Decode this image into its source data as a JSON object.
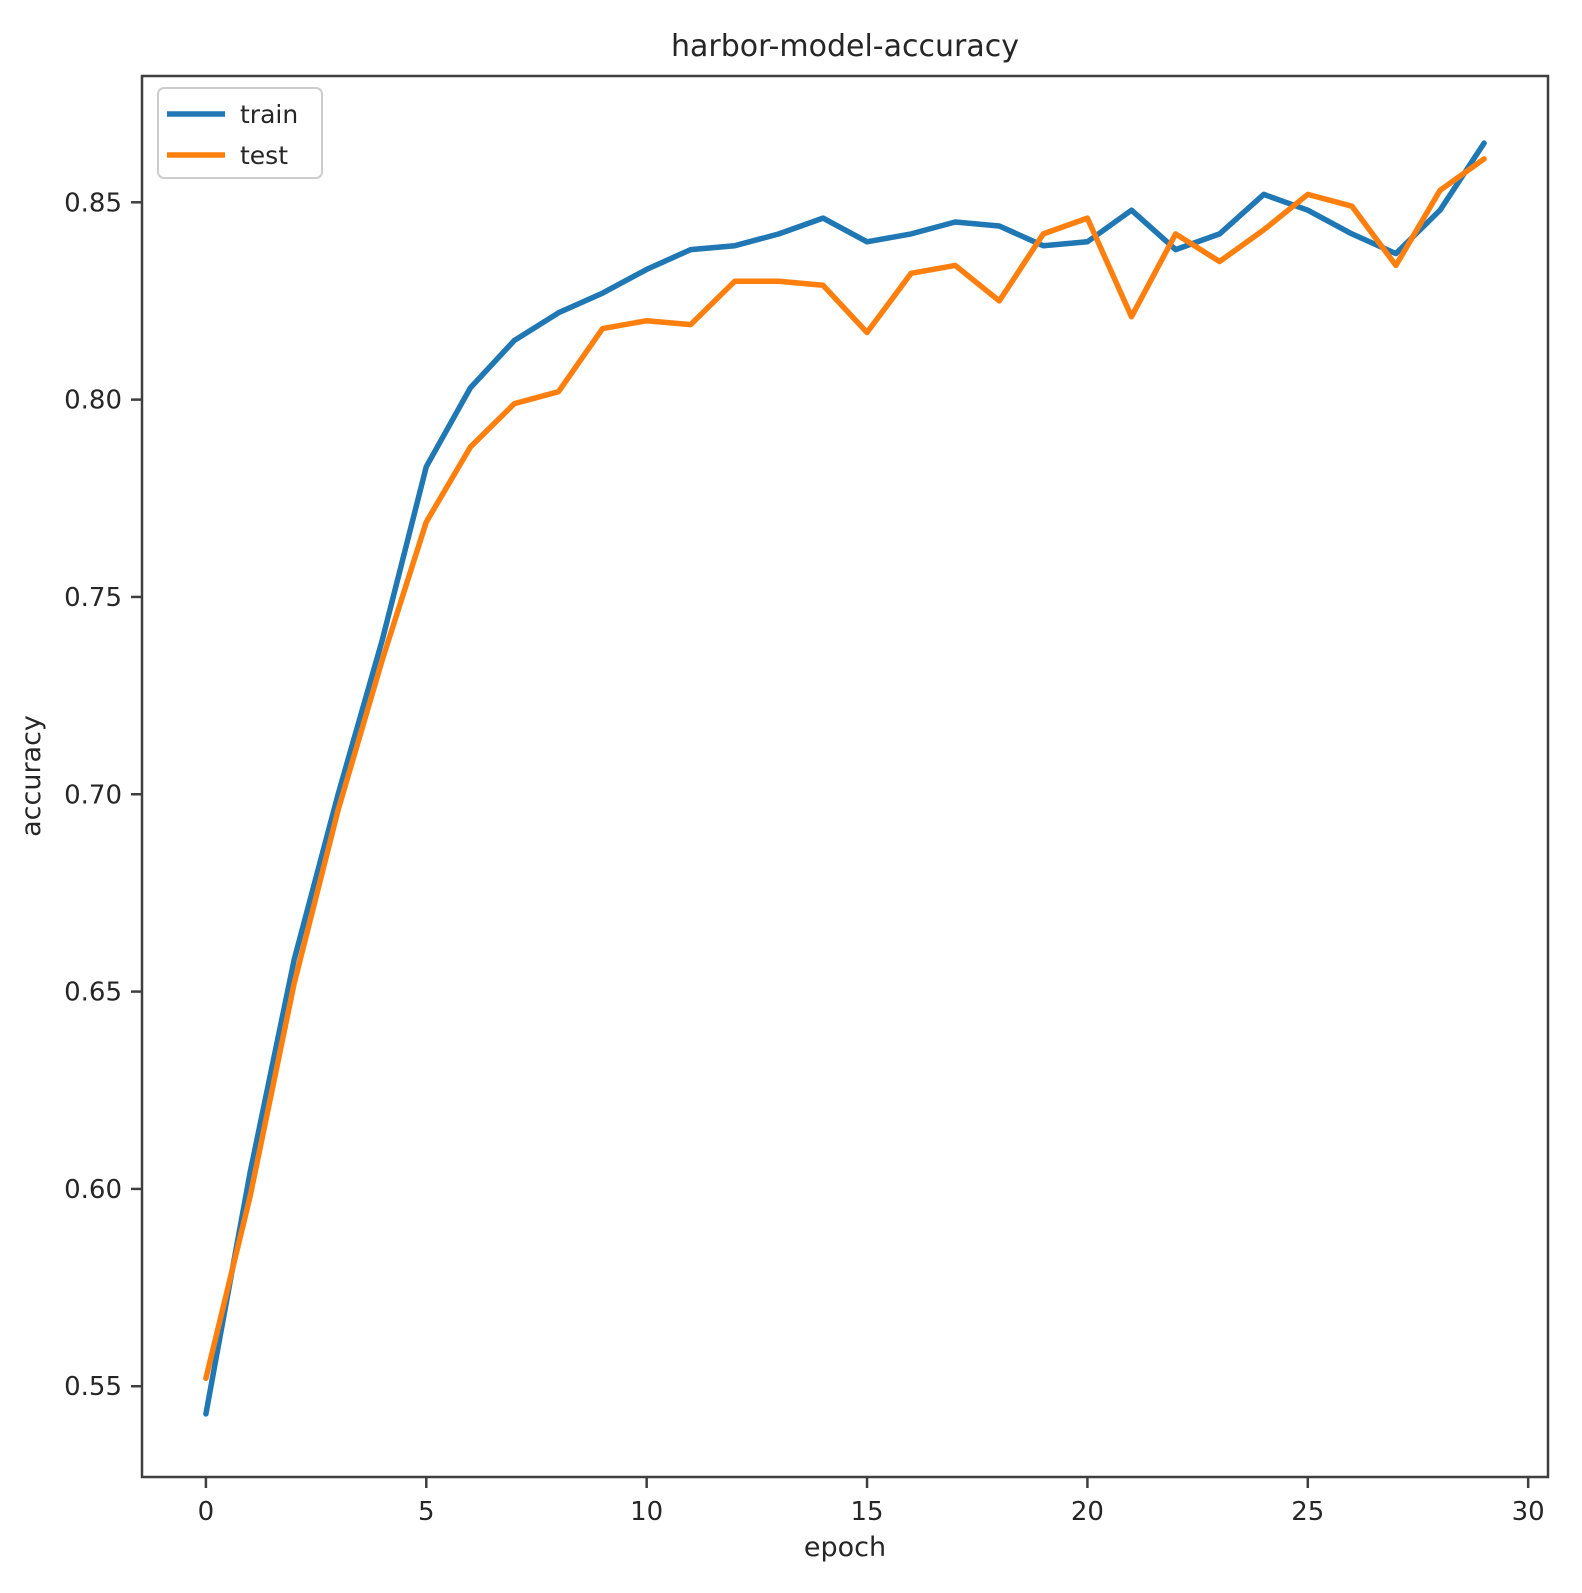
{
  "chart_data": {
    "type": "line",
    "title": "harbor-model-accuracy",
    "xlabel": "epoch",
    "ylabel": "accuracy",
    "x": [
      0,
      1,
      2,
      3,
      4,
      5,
      6,
      7,
      8,
      9,
      10,
      11,
      12,
      13,
      14,
      15,
      16,
      17,
      18,
      19,
      20,
      21,
      22,
      23,
      24,
      25,
      26,
      27,
      28,
      29
    ],
    "series": [
      {
        "name": "train",
        "color": "#1f77b4",
        "values": [
          0.543,
          0.604,
          0.658,
          0.7,
          0.739,
          0.783,
          0.803,
          0.815,
          0.822,
          0.827,
          0.833,
          0.838,
          0.839,
          0.842,
          0.846,
          0.84,
          0.842,
          0.845,
          0.844,
          0.839,
          0.84,
          0.848,
          0.838,
          0.842,
          0.852,
          0.848,
          0.842,
          0.837,
          0.848,
          0.865
        ]
      },
      {
        "name": "test",
        "color": "#ff7f0e",
        "values": [
          0.552,
          0.598,
          0.652,
          0.696,
          0.734,
          0.769,
          0.788,
          0.799,
          0.802,
          0.818,
          0.82,
          0.819,
          0.83,
          0.83,
          0.829,
          0.817,
          0.832,
          0.834,
          0.825,
          0.842,
          0.846,
          0.821,
          0.842,
          0.835,
          0.843,
          0.852,
          0.849,
          0.834,
          0.853,
          0.861
        ]
      }
    ],
    "x_ticks": [
      0,
      5,
      10,
      15,
      20,
      25,
      30
    ],
    "y_ticks": [
      "0.55",
      "0.60",
      "0.65",
      "0.70",
      "0.75",
      "0.80",
      "0.85"
    ],
    "xlim": [
      -1.45,
      30.45
    ],
    "ylim": [
      0.527,
      0.882
    ],
    "grid": false,
    "legend_position": "upper left"
  },
  "legend": {
    "items": [
      {
        "label": "train",
        "color": "#1f77b4"
      },
      {
        "label": "test",
        "color": "#ff7f0e"
      }
    ]
  }
}
